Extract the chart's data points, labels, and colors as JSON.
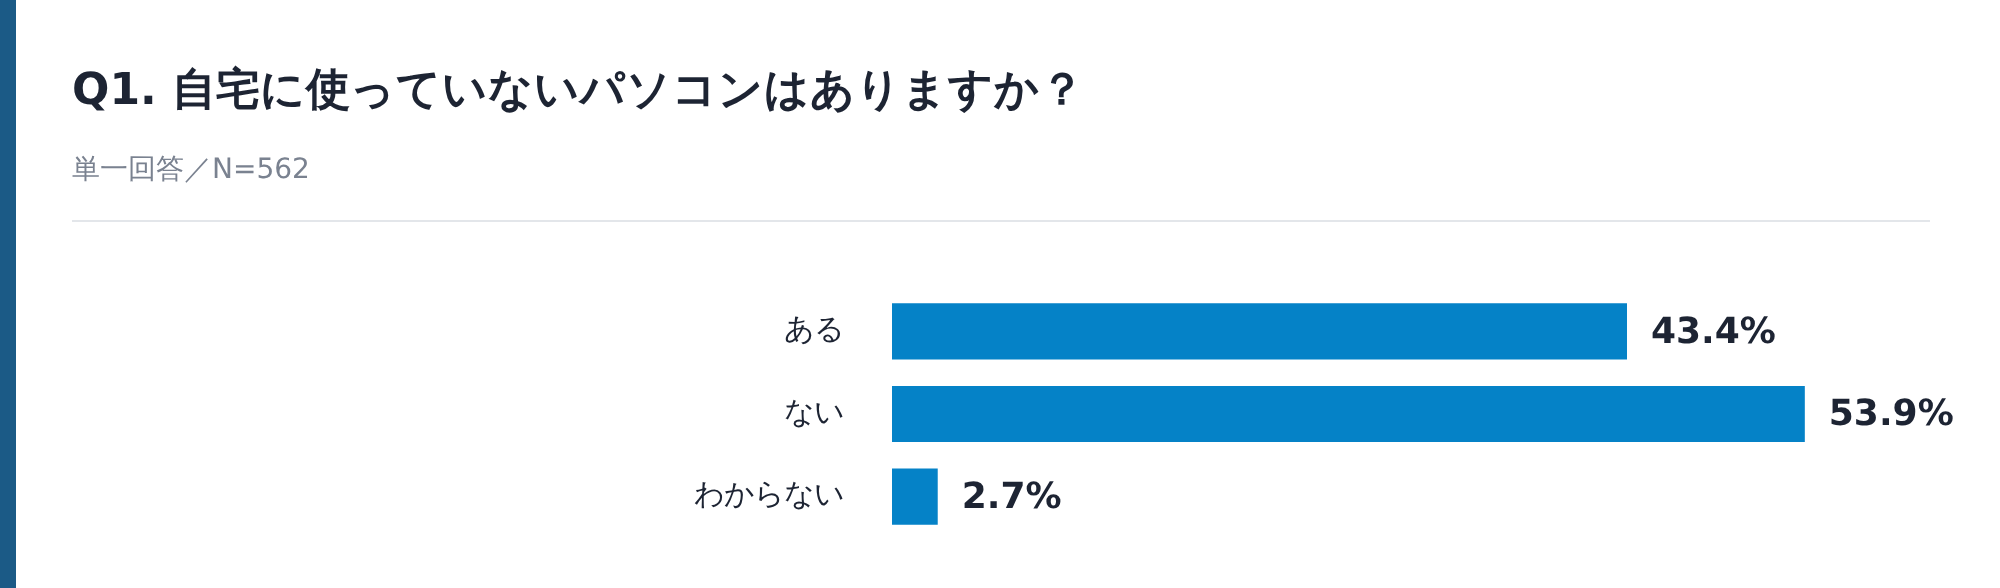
{
  "chart_data": {
    "type": "bar",
    "orientation": "horizontal",
    "title": "Q1. 自宅に使っていないパソコンはありますか？",
    "subtitle": "単一回答／N=562",
    "categories": [
      "ある",
      "ない",
      "わからない"
    ],
    "values": [
      43.4,
      53.9,
      2.7
    ],
    "value_labels": [
      "43.4%",
      "53.9%",
      "2.7%"
    ],
    "color": "#0582c7",
    "legend": false,
    "tick_labels": "y"
  }
}
